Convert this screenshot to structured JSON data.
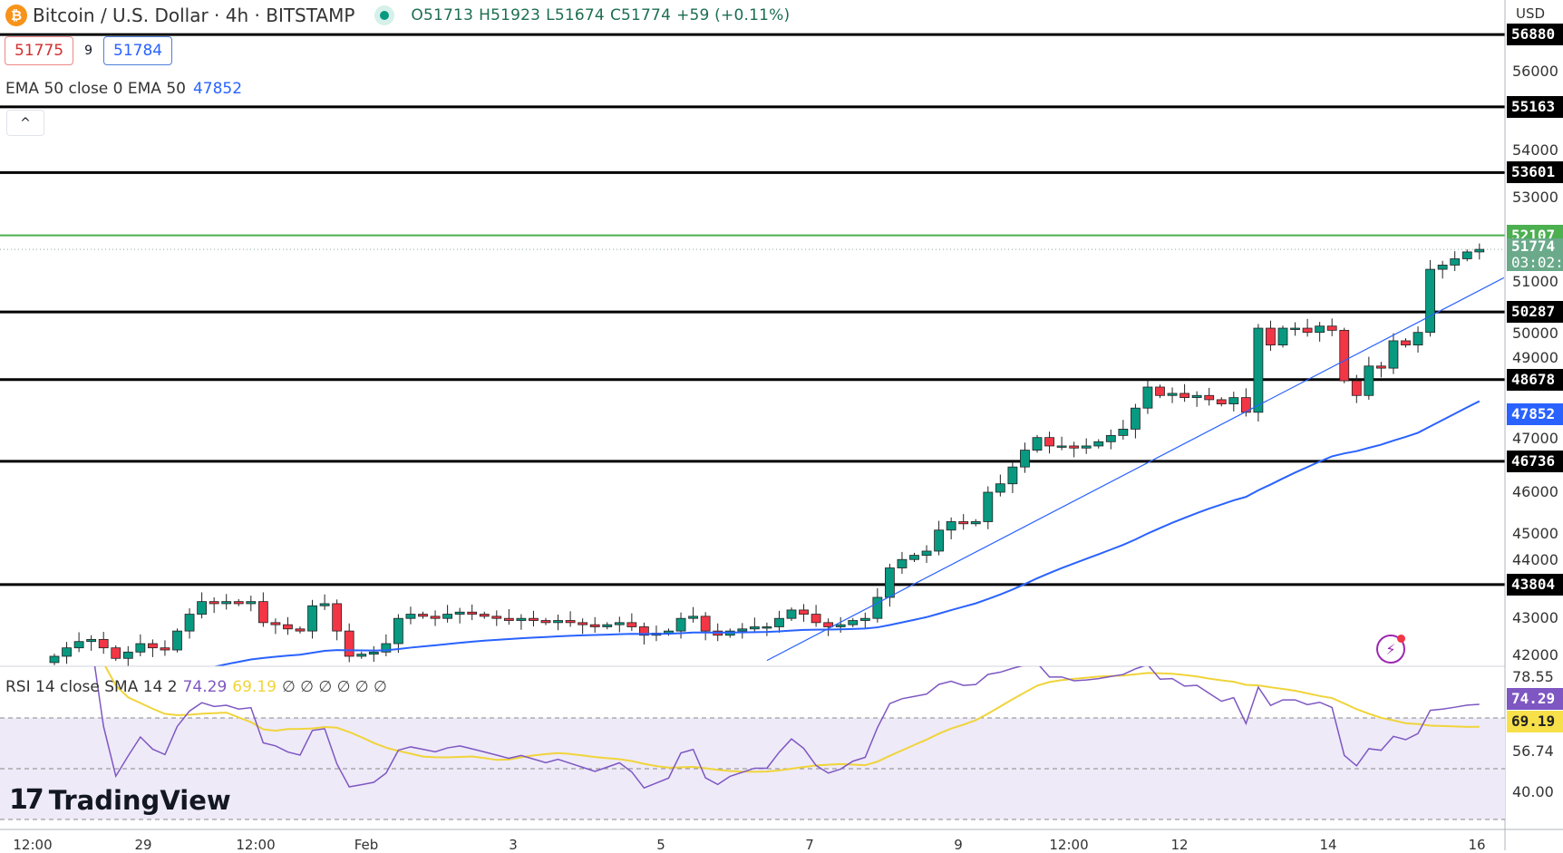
{
  "header": {
    "symbol": "Bitcoin / U.S. Dollar · 4h · BITSTAMP",
    "coin_icon": "bitcoin-icon",
    "open": "O51713",
    "high": "H51923",
    "low": "L51674",
    "close": "C51774",
    "change": "+59 (+0.11%)"
  },
  "quote": {
    "bid": "51775",
    "spread": "9",
    "ask": "51784"
  },
  "ema": {
    "label": "EMA 50 close 0 EMA 50",
    "value": "47852"
  },
  "rsi": {
    "label": "RSI 14 close SMA 14 2",
    "rsi_value": "74.29",
    "sma_value": "69.19",
    "extras": "∅ ∅ ∅ ∅ ∅ ∅",
    "axis": [
      "78.55",
      "56.74",
      "40.00"
    ]
  },
  "logo": "TradingView",
  "axis": {
    "currency": "USD",
    "ticks": [
      "56000",
      "54000",
      "53000",
      "51000",
      "50000",
      "49000",
      "47000",
      "46000",
      "45000",
      "44000",
      "43000",
      "42000"
    ]
  },
  "levels": [
    "56880",
    "55163",
    "53601",
    "50287",
    "48678",
    "46736",
    "43804"
  ],
  "tags": {
    "green_level": "52107",
    "last_price": "51774",
    "countdown": "03:02:",
    "ema": "47852"
  },
  "time_labels": [
    "12:00",
    "29",
    "12:00",
    "Feb",
    "3",
    "5",
    "7",
    "9",
    "12:00",
    "12",
    "14",
    "16"
  ],
  "colors": {
    "up": "#089981",
    "down": "#f23645",
    "ema": "#2962ff",
    "rsi": "#7e57c2",
    "rsi_sma": "#f0d43a",
    "level": "#000000",
    "green_level": "#4caf50"
  },
  "chart_data": {
    "type": "candlestick",
    "ylim": [
      42000,
      57000
    ],
    "closes": [
      42100,
      42300,
      42450,
      42500,
      42300,
      42050,
      42200,
      42400,
      42300,
      42250,
      42700,
      43100,
      43400,
      43350,
      43400,
      43350,
      43400,
      42900,
      42850,
      42750,
      42700,
      43300,
      43350,
      42700,
      42100,
      42150,
      42200,
      42400,
      43000,
      43100,
      43050,
      43000,
      43100,
      43150,
      43100,
      43050,
      43000,
      42950,
      43000,
      42950,
      42900,
      42950,
      42900,
      42850,
      42800,
      42850,
      42900,
      42800,
      42600,
      42650,
      42700,
      43000,
      43050,
      42700,
      42600,
      42700,
      42750,
      42800,
      42800,
      43000,
      43200,
      43100,
      42900,
      42800,
      42850,
      42950,
      43000,
      43500,
      44200,
      44400,
      44500,
      44600,
      45100,
      45300,
      45250,
      45300,
      46000,
      46200,
      46600,
      47000,
      47300,
      47100,
      47100,
      47050,
      47100,
      47200,
      47350,
      47500,
      48000,
      48500,
      48300,
      48350,
      48250,
      48300,
      48200,
      48100,
      48250,
      47900,
      49900,
      49500,
      49900,
      49900,
      49800,
      49950,
      49850,
      48650,
      48300,
      49000,
      48950,
      49600,
      49500,
      49800,
      51300,
      51400,
      51550,
      51713,
      51774
    ],
    "trendline": {
      "start_index": 58,
      "start_price": 42000,
      "end_index": 118,
      "end_price": 51100
    },
    "horizontal_levels": [
      56880,
      55163,
      53601,
      52107,
      50287,
      48678,
      46736,
      43804
    ],
    "ema_period": 50,
    "rsi_period": 14,
    "rsi_bands": [
      70,
      50,
      30
    ]
  }
}
